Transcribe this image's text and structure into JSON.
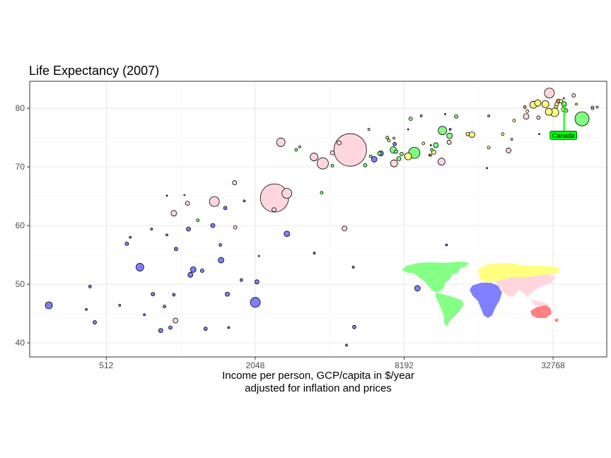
{
  "chart_data": {
    "type": "scatter",
    "title": "Life Expectancy (2007)",
    "xlabel": [
      "Income per person, GCP/capita in $/year",
      "adjusted for inflation and prices"
    ],
    "ylabel": "",
    "x_scale": "log2",
    "xlim": [
      251,
      54000
    ],
    "ylim": [
      37.6,
      84.6
    ],
    "x_ticks": [
      512,
      2048,
      8192,
      32768
    ],
    "x_tick_labels": [
      "512",
      "2048",
      "8192",
      "32768"
    ],
    "y_ticks": [
      40,
      50,
      60,
      70,
      80
    ],
    "y_tick_labels": [
      "40",
      "50",
      "60",
      "70",
      "80"
    ],
    "grid": true,
    "legend": "inset world map colored by region, bottom-right",
    "annotation": {
      "label": "Canada",
      "x": 36300,
      "y": 80.7,
      "color": "#00ff00"
    },
    "colors": {
      "Africa": "#8080ff",
      "Americas": "#80ff80",
      "Asia": "#ffd6dd",
      "Europe": "#ffff80",
      "Oceania": "#ff8080"
    },
    "series": [
      {
        "region": "Africa",
        "points": [
          {
            "x": 300,
            "y": 46.4,
            "r": 5
          },
          {
            "x": 440,
            "y": 49.6,
            "r": 2
          },
          {
            "x": 460,
            "y": 43.5,
            "r": 2.5
          },
          {
            "x": 425,
            "y": 45.7,
            "r": 1.5
          },
          {
            "x": 580,
            "y": 46.4,
            "r": 1.5
          },
          {
            "x": 620,
            "y": 56.9,
            "r": 2.5
          },
          {
            "x": 640,
            "y": 58.0,
            "r": 1.5
          },
          {
            "x": 700,
            "y": 52.9,
            "r": 5.5
          },
          {
            "x": 730,
            "y": 44.8,
            "r": 1.5
          },
          {
            "x": 780,
            "y": 59.4,
            "r": 1.5
          },
          {
            "x": 790,
            "y": 48.3,
            "r": 2.5
          },
          {
            "x": 850,
            "y": 42.1,
            "r": 3
          },
          {
            "x": 880,
            "y": 46.2,
            "r": 2
          },
          {
            "x": 900,
            "y": 58.4,
            "r": 1.5
          },
          {
            "x": 930,
            "y": 42.6,
            "r": 2.5
          },
          {
            "x": 960,
            "y": 48.2,
            "r": 2
          },
          {
            "x": 980,
            "y": 56.0,
            "r": 2.5
          },
          {
            "x": 1100,
            "y": 59.4,
            "r": 3
          },
          {
            "x": 1120,
            "y": 51.6,
            "r": 3.5
          },
          {
            "x": 1150,
            "y": 52.5,
            "r": 4
          },
          {
            "x": 1250,
            "y": 52.3,
            "r": 2.5
          },
          {
            "x": 1290,
            "y": 42.4,
            "r": 2.5
          },
          {
            "x": 1380,
            "y": 60.0,
            "r": 3
          },
          {
            "x": 1480,
            "y": 56.7,
            "r": 2
          },
          {
            "x": 1490,
            "y": 54.1,
            "r": 4
          },
          {
            "x": 1550,
            "y": 63.0,
            "r": 2.5
          },
          {
            "x": 1580,
            "y": 48.3,
            "r": 3
          },
          {
            "x": 1600,
            "y": 42.6,
            "r": 1.5
          },
          {
            "x": 1800,
            "y": 50.7,
            "r": 2
          },
          {
            "x": 1850,
            "y": 64.2,
            "r": 1.5
          },
          {
            "x": 2050,
            "y": 46.9,
            "r": 7
          },
          {
            "x": 2080,
            "y": 50.4,
            "r": 3
          },
          {
            "x": 2120,
            "y": 54.8,
            "r": 1
          },
          {
            "x": 2750,
            "y": 58.6,
            "r": 4
          },
          {
            "x": 3550,
            "y": 55.3,
            "r": 1.5
          },
          {
            "x": 4790,
            "y": 39.6,
            "r": 1.5
          },
          {
            "x": 5100,
            "y": 52.9,
            "r": 1.5
          },
          {
            "x": 5150,
            "y": 42.7,
            "r": 2.5
          },
          {
            "x": 6200,
            "y": 71.3,
            "r": 4
          },
          {
            "x": 6600,
            "y": 72.3,
            "r": 3.5
          },
          {
            "x": 7500,
            "y": 73.9,
            "r": 2.5
          },
          {
            "x": 9270,
            "y": 49.3,
            "r": 4
          },
          {
            "x": 12150,
            "y": 56.7,
            "r": 1.5
          },
          {
            "x": 12570,
            "y": 76.4,
            "r": 1.5
          }
        ]
      },
      {
        "region": "Americas",
        "points": [
          {
            "x": 1200,
            "y": 60.9,
            "r": 2
          },
          {
            "x": 3000,
            "y": 72.9,
            "r": 2
          },
          {
            "x": 3800,
            "y": 65.6,
            "r": 2
          },
          {
            "x": 4200,
            "y": 70.2,
            "r": 2
          },
          {
            "x": 5700,
            "y": 70.3,
            "r": 2.5
          },
          {
            "x": 6000,
            "y": 71.8,
            "r": 2
          },
          {
            "x": 6500,
            "y": 72.3,
            "r": 2.5
          },
          {
            "x": 7000,
            "y": 75.0,
            "r": 2
          },
          {
            "x": 7400,
            "y": 72.9,
            "r": 4.5
          },
          {
            "x": 7600,
            "y": 72.6,
            "r": 2.5
          },
          {
            "x": 7800,
            "y": 71.4,
            "r": 3
          },
          {
            "x": 8000,
            "y": 72.2,
            "r": 2.5
          },
          {
            "x": 8700,
            "y": 78.2,
            "r": 2.5
          },
          {
            "x": 9000,
            "y": 72.4,
            "r": 8
          },
          {
            "x": 9600,
            "y": 78.7,
            "r": 1.5
          },
          {
            "x": 10600,
            "y": 72.9,
            "r": 2
          },
          {
            "x": 11000,
            "y": 73.7,
            "r": 3.5
          },
          {
            "x": 11700,
            "y": 76.2,
            "r": 6
          },
          {
            "x": 12500,
            "y": 75.3,
            "r": 4
          },
          {
            "x": 13300,
            "y": 78.6,
            "r": 2.5
          },
          {
            "x": 18000,
            "y": 78.7,
            "r": 1.5
          },
          {
            "x": 36300,
            "y": 80.7,
            "r": 3.5
          },
          {
            "x": 37000,
            "y": 79.6,
            "r": 2.5
          },
          {
            "x": 42900,
            "y": 78.2,
            "r": 10
          }
        ]
      },
      {
        "region": "Asia",
        "points": [
          {
            "x": 975,
            "y": 43.8,
            "r": 3.5
          },
          {
            "x": 960,
            "y": 62.1,
            "r": 4
          },
          {
            "x": 1090,
            "y": 63.8,
            "r": 3
          },
          {
            "x": 1060,
            "y": 65.2,
            "r": 1
          },
          {
            "x": 1400,
            "y": 64.1,
            "r": 7
          },
          {
            "x": 1700,
            "y": 59.7,
            "r": 2.5
          },
          {
            "x": 1690,
            "y": 67.3,
            "r": 3
          },
          {
            "x": 2440,
            "y": 62.7,
            "r": 3
          },
          {
            "x": 2450,
            "y": 64.7,
            "r": 20
          },
          {
            "x": 2600,
            "y": 74.2,
            "r": 6
          },
          {
            "x": 2750,
            "y": 65.5,
            "r": 7
          },
          {
            "x": 3100,
            "y": 73.4,
            "r": 1.5
          },
          {
            "x": 3540,
            "y": 71.7,
            "r": 5.5
          },
          {
            "x": 3840,
            "y": 70.6,
            "r": 8
          },
          {
            "x": 4200,
            "y": 72.4,
            "r": 3
          },
          {
            "x": 4470,
            "y": 74.1,
            "r": 3
          },
          {
            "x": 4700,
            "y": 59.5,
            "r": 3.5
          },
          {
            "x": 4960,
            "y": 72.9,
            "r": 23
          },
          {
            "x": 7460,
            "y": 70.6,
            "r": 5
          },
          {
            "x": 10400,
            "y": 72.0,
            "r": 1.5
          },
          {
            "x": 11600,
            "y": 70.9,
            "r": 5
          },
          {
            "x": 12450,
            "y": 74.2,
            "r": 3
          },
          {
            "x": 21650,
            "y": 72.8,
            "r": 3.5
          },
          {
            "x": 22300,
            "y": 74.7,
            "r": 1.5
          },
          {
            "x": 25500,
            "y": 78.6,
            "r": 4
          },
          {
            "x": 28600,
            "y": 78.4,
            "r": 2.5
          },
          {
            "x": 31650,
            "y": 82.6,
            "r": 7
          },
          {
            "x": 39700,
            "y": 82.2,
            "r": 2.5
          },
          {
            "x": 47300,
            "y": 80.0,
            "r": 2
          },
          {
            "x": 47300,
            "y": 80.2,
            "r": 1.5
          }
        ]
      },
      {
        "region": "Europe",
        "points": [
          {
            "x": 5900,
            "y": 76.4,
            "r": 1.5
          },
          {
            "x": 7100,
            "y": 74.5,
            "r": 2
          },
          {
            "x": 7450,
            "y": 74.9,
            "r": 1.5
          },
          {
            "x": 8500,
            "y": 71.8,
            "r": 5
          },
          {
            "x": 9800,
            "y": 74.0,
            "r": 2
          },
          {
            "x": 10800,
            "y": 72.5,
            "r": 3
          },
          {
            "x": 10500,
            "y": 72.0,
            "r": 1.5
          },
          {
            "x": 14800,
            "y": 75.6,
            "r": 2.5
          },
          {
            "x": 15400,
            "y": 75.5,
            "r": 4
          },
          {
            "x": 18000,
            "y": 73.3,
            "r": 2
          },
          {
            "x": 20500,
            "y": 75.6,
            "r": 2
          },
          {
            "x": 22800,
            "y": 77.9,
            "r": 2
          },
          {
            "x": 25800,
            "y": 79.5,
            "r": 2
          },
          {
            "x": 27300,
            "y": 80.6,
            "r": 5
          },
          {
            "x": 28400,
            "y": 80.9,
            "r": 4.5
          },
          {
            "x": 30500,
            "y": 80.7,
            "r": 5
          },
          {
            "x": 31500,
            "y": 79.4,
            "r": 5
          },
          {
            "x": 33200,
            "y": 79.3,
            "r": 6
          },
          {
            "x": 33700,
            "y": 80.3,
            "r": 2.5
          },
          {
            "x": 33900,
            "y": 80.7,
            "r": 2.5
          },
          {
            "x": 35300,
            "y": 81.2,
            "r": 2.5
          },
          {
            "x": 36100,
            "y": 79.8,
            "r": 3
          },
          {
            "x": 40700,
            "y": 80.7,
            "r": 1.5
          },
          {
            "x": 49400,
            "y": 80.2,
            "r": 1.5
          },
          {
            "x": 36200,
            "y": 81.7,
            "r": 1
          }
        ]
      },
      {
        "region": "Oceania",
        "points": [
          {
            "x": 25200,
            "y": 80.2,
            "r": 2
          },
          {
            "x": 34400,
            "y": 81.2,
            "r": 3
          }
        ]
      }
    ],
    "unlabeled_small_points": [
      {
        "x": 900,
        "y": 65.1,
        "r": 1
      },
      {
        "x": 2700,
        "y": 64.4,
        "r": 1
      },
      {
        "x": 12000,
        "y": 79.0,
        "r": 1
      },
      {
        "x": 17700,
        "y": 69.8,
        "r": 1
      },
      {
        "x": 28800,
        "y": 75.6,
        "r": 1
      },
      {
        "x": 41000,
        "y": 77.5,
        "r": 1
      },
      {
        "x": 8500,
        "y": 76.4,
        "r": 1
      },
      {
        "x": 10500,
        "y": 73.7,
        "r": 1
      }
    ]
  }
}
